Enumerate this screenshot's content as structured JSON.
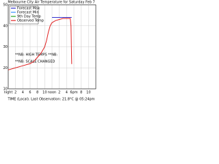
{
  "chart_data": {
    "type": "line",
    "title": "Melbourne City Air Temperature for Saturday Feb 7",
    "x_label": "TIME (Local).  Last Observation: 21.8°C @ 05:24pm",
    "annotations": [
      "**NB: HIGH TEMPS **NB:",
      "**NB: SCALE CHANGED"
    ],
    "xlim": [
      0,
      24
    ],
    "xticks": [
      {
        "value": 0,
        "label": "night"
      },
      2,
      4,
      6,
      8,
      10,
      {
        "value": 12,
        "label": "noon"
      },
      {
        "value": 14,
        "label": "2"
      },
      {
        "value": 16,
        "label": "4"
      },
      {
        "value": 18,
        "label": "6pm"
      },
      {
        "value": 20,
        "label": "8"
      },
      {
        "value": 22,
        "label": "10"
      }
    ],
    "ylim": [
      10,
      50
    ],
    "yticks": [
      10,
      20,
      30,
      40,
      50
    ],
    "grid": true,
    "legend": "upper left",
    "series": [
      {
        "name": "Forecast Max",
        "color": "#3030d0",
        "x": [
          12,
          17.4
        ],
        "values": [
          44,
          44
        ]
      },
      {
        "name": "Forecast Min",
        "color": "#3090ff",
        "x": [],
        "values": []
      },
      {
        "name": "9th Day Temp",
        "color": "#20a020",
        "x": [],
        "values": []
      },
      {
        "name": "Observed Temp",
        "color": "#e02020",
        "x": [
          0,
          2,
          4,
          6,
          7,
          8,
          9,
          10,
          10.5,
          11,
          11.5,
          12,
          13,
          14,
          15,
          16,
          17,
          17.2,
          17.4
        ],
        "values": [
          19,
          20,
          21,
          22,
          23,
          25,
          27,
          30,
          33,
          37,
          40,
          41.5,
          42.5,
          43,
          43.5,
          43.5,
          43.5,
          40,
          21.8
        ]
      }
    ]
  }
}
